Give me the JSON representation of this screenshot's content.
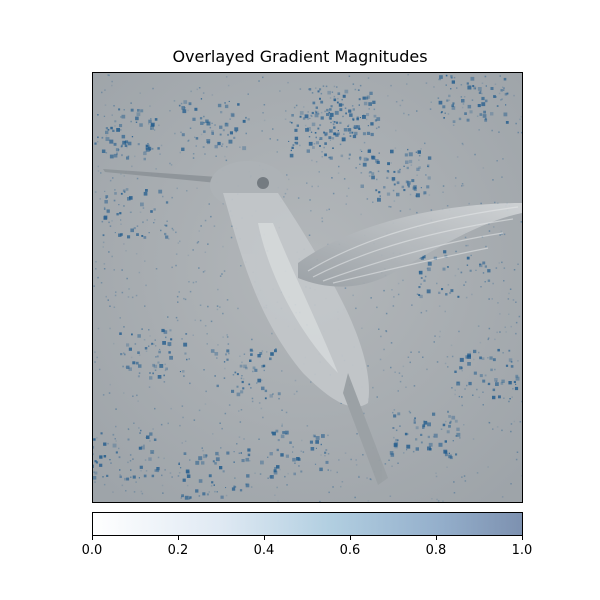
{
  "chart_data": {
    "type": "heatmap",
    "title": "Overlayed Gradient Magnitudes",
    "description_subject": "hummingbird",
    "axes_ticks_visible": false,
    "colorbar": {
      "vmin": 0.0,
      "vmax": 1.0,
      "ticks": [
        "0.0",
        "0.2",
        "0.4",
        "0.6",
        "0.8",
        "1.0"
      ],
      "tick_values": [
        0.0,
        0.2,
        0.4,
        0.6,
        0.8,
        1.0
      ],
      "colormap": "Blues",
      "alpha": 0.5
    }
  },
  "colors": {
    "background_gray": "#a8adb2",
    "bird_gray": "#c9ccce",
    "speckle_blue": "#1f5a8c",
    "cbar_low": "#ffffff",
    "cbar_high": "#7d91b0"
  }
}
